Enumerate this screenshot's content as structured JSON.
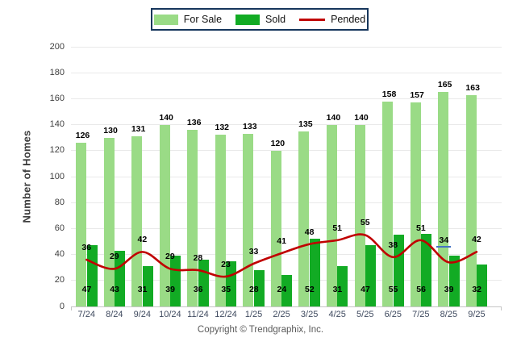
{
  "legend": {
    "for_sale": "For Sale",
    "sold": "Sold",
    "pended": "Pended"
  },
  "y_axis": {
    "label": "Number of Homes",
    "min": 0,
    "max": 200,
    "step": 20
  },
  "footer": {
    "copyright": "Copyright © Trendgraphix, Inc."
  },
  "colors": {
    "for_sale": "#9adb86",
    "sold": "#12ab24",
    "pended": "#c00000",
    "legend_border": "#16365c",
    "grid": "#e9e9e9",
    "axis": "#c6c6c6",
    "highlight": "#4472c4"
  },
  "chart_data": {
    "type": "bar",
    "title": "",
    "xlabel": "",
    "ylabel": "Number of Homes",
    "ylim": [
      0,
      200
    ],
    "yticks": [
      0,
      20,
      40,
      60,
      80,
      100,
      120,
      140,
      160,
      180,
      200
    ],
    "grid": true,
    "legend_position": "top",
    "categories": [
      "7/24",
      "8/24",
      "9/24",
      "10/24",
      "11/24",
      "12/24",
      "1/25",
      "2/25",
      "3/25",
      "4/25",
      "5/25",
      "6/25",
      "7/25",
      "8/25",
      "9/25"
    ],
    "series": [
      {
        "name": "For Sale",
        "type": "bar",
        "color": "#9adb86",
        "values": [
          126,
          130,
          131,
          140,
          136,
          132,
          133,
          120,
          135,
          140,
          140,
          158,
          157,
          165,
          163
        ]
      },
      {
        "name": "Sold",
        "type": "bar",
        "color": "#12ab24",
        "values": [
          47,
          43,
          31,
          39,
          36,
          35,
          28,
          24,
          52,
          31,
          47,
          55,
          56,
          39,
          32
        ]
      },
      {
        "name": "Pended",
        "type": "line",
        "color": "#c00000",
        "values": [
          36,
          29,
          42,
          29,
          28,
          23,
          33,
          41,
          48,
          51,
          55,
          38,
          51,
          34,
          42
        ]
      }
    ],
    "pended_highlight_index": 13
  }
}
